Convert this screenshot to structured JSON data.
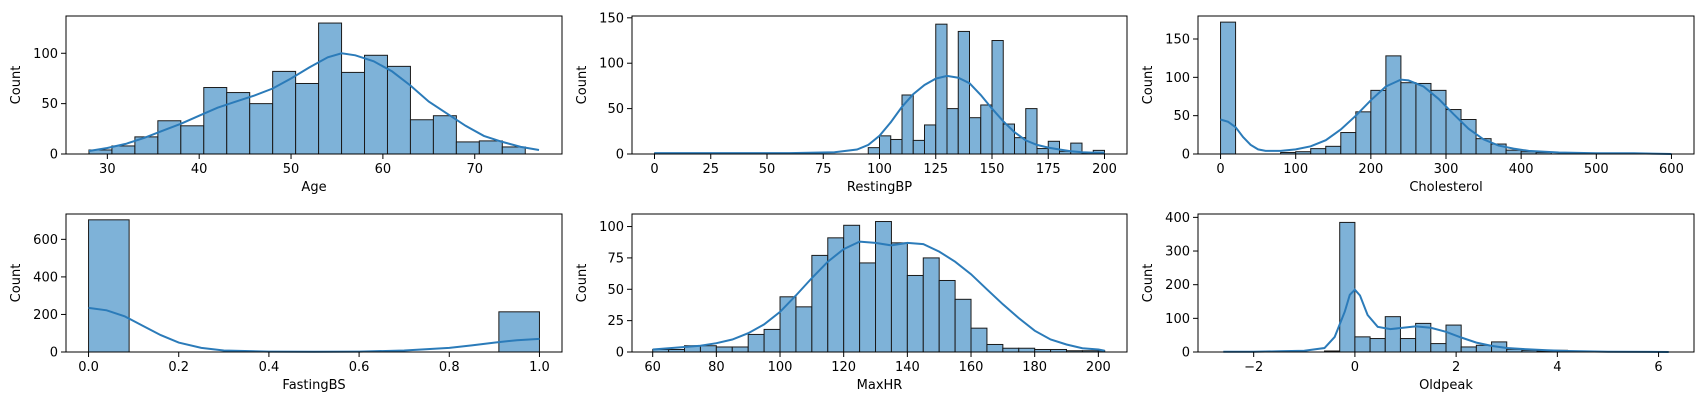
{
  "chart_data": [
    {
      "type": "histogram",
      "xlabel": "Age",
      "ylabel": "Count",
      "xlim": [
        25.5,
        79.5
      ],
      "ylim": [
        0,
        137
      ],
      "xticks": [
        30,
        40,
        50,
        60,
        70
      ],
      "yticks": [
        0,
        50,
        100
      ],
      "bins": [
        [
          28,
          30.5
        ],
        [
          30.5,
          33
        ],
        [
          33,
          35.5
        ],
        [
          35.5,
          38
        ],
        [
          38,
          40.5
        ],
        [
          40.5,
          43
        ],
        [
          43,
          45.5
        ],
        [
          45.5,
          48
        ],
        [
          48,
          50.5
        ],
        [
          50.5,
          53
        ],
        [
          53,
          55.5
        ],
        [
          55.5,
          58
        ],
        [
          58,
          60.5
        ],
        [
          60.5,
          63
        ],
        [
          63,
          65.5
        ],
        [
          65.5,
          68
        ],
        [
          68,
          70.5
        ],
        [
          70.5,
          73
        ],
        [
          73,
          75.5
        ],
        [
          75.5,
          77
        ]
      ],
      "counts": [
        4,
        8,
        17,
        33,
        28,
        66,
        61,
        50,
        82,
        70,
        130,
        81,
        98,
        87,
        34,
        38,
        12,
        13,
        7,
        0
      ],
      "kde": [
        [
          28,
          3
        ],
        [
          30,
          6
        ],
        [
          32,
          10
        ],
        [
          34,
          16
        ],
        [
          36,
          23
        ],
        [
          38,
          30
        ],
        [
          40,
          38
        ],
        [
          42,
          46
        ],
        [
          44,
          52
        ],
        [
          46,
          58
        ],
        [
          48,
          65
        ],
        [
          50,
          75
        ],
        [
          52,
          86
        ],
        [
          54,
          96
        ],
        [
          55.5,
          100
        ],
        [
          57,
          98
        ],
        [
          59,
          92
        ],
        [
          61,
          82
        ],
        [
          63,
          68
        ],
        [
          65,
          52
        ],
        [
          67,
          40
        ],
        [
          69,
          28
        ],
        [
          71,
          18
        ],
        [
          73,
          12
        ],
        [
          75,
          7
        ],
        [
          77,
          4
        ]
      ]
    },
    {
      "type": "histogram",
      "xlabel": "RestingBP",
      "ylabel": "Count",
      "xlim": [
        -10,
        210
      ],
      "ylim": [
        0,
        152
      ],
      "xticks": [
        0,
        25,
        50,
        75,
        100,
        125,
        150,
        175,
        200
      ],
      "yticks": [
        0,
        50,
        100,
        150
      ],
      "bins": [
        [
          0,
          5
        ],
        [
          95,
          100
        ],
        [
          100,
          105
        ],
        [
          105,
          110
        ],
        [
          110,
          115
        ],
        [
          115,
          120
        ],
        [
          120,
          125
        ],
        [
          125,
          130
        ],
        [
          130,
          135
        ],
        [
          135,
          140
        ],
        [
          140,
          145
        ],
        [
          145,
          150
        ],
        [
          150,
          155
        ],
        [
          155,
          160
        ],
        [
          160,
          165
        ],
        [
          165,
          170
        ],
        [
          170,
          175
        ],
        [
          175,
          180
        ],
        [
          180,
          185
        ],
        [
          185,
          190
        ],
        [
          190,
          195
        ],
        [
          195,
          200
        ]
      ],
      "counts": [
        1,
        7,
        20,
        16,
        65,
        15,
        32,
        143,
        50,
        135,
        40,
        54,
        125,
        33,
        18,
        50,
        6,
        14,
        3,
        12,
        1,
        4
      ],
      "kde": [
        [
          0,
          1
        ],
        [
          20,
          1
        ],
        [
          40,
          1
        ],
        [
          60,
          1
        ],
        [
          80,
          2
        ],
        [
          90,
          5
        ],
        [
          95,
          10
        ],
        [
          100,
          20
        ],
        [
          105,
          35
        ],
        [
          110,
          52
        ],
        [
          115,
          66
        ],
        [
          120,
          76
        ],
        [
          125,
          83
        ],
        [
          130,
          86
        ],
        [
          135,
          84
        ],
        [
          140,
          78
        ],
        [
          145,
          65
        ],
        [
          150,
          50
        ],
        [
          155,
          36
        ],
        [
          160,
          24
        ],
        [
          165,
          15
        ],
        [
          170,
          10
        ],
        [
          175,
          7
        ],
        [
          180,
          5
        ],
        [
          185,
          3
        ],
        [
          190,
          2
        ],
        [
          200,
          1
        ]
      ]
    },
    {
      "type": "histogram",
      "xlabel": "Cholesterol",
      "ylabel": "Count",
      "xlim": [
        -30,
        630
      ],
      "ylim": [
        0,
        180
      ],
      "xticks": [
        0,
        100,
        200,
        300,
        400,
        500,
        600
      ],
      "yticks": [
        0,
        50,
        100,
        150
      ],
      "bins": [
        [
          0,
          20
        ],
        [
          80,
          100
        ],
        [
          100,
          120
        ],
        [
          120,
          140
        ],
        [
          140,
          160
        ],
        [
          160,
          180
        ],
        [
          180,
          200
        ],
        [
          200,
          220
        ],
        [
          220,
          240
        ],
        [
          240,
          260
        ],
        [
          260,
          280
        ],
        [
          280,
          300
        ],
        [
          300,
          320
        ],
        [
          320,
          340
        ],
        [
          340,
          360
        ],
        [
          360,
          380
        ],
        [
          380,
          400
        ],
        [
          400,
          420
        ],
        [
          420,
          440
        ]
      ],
      "counts": [
        172,
        2,
        3,
        7,
        10,
        28,
        55,
        83,
        128,
        93,
        92,
        83,
        58,
        45,
        20,
        13,
        5,
        3,
        2
      ],
      "kde": [
        [
          0,
          45
        ],
        [
          10,
          42
        ],
        [
          20,
          35
        ],
        [
          30,
          22
        ],
        [
          40,
          12
        ],
        [
          50,
          6
        ],
        [
          60,
          4
        ],
        [
          80,
          4
        ],
        [
          100,
          6
        ],
        [
          120,
          10
        ],
        [
          140,
          18
        ],
        [
          160,
          32
        ],
        [
          180,
          50
        ],
        [
          200,
          70
        ],
        [
          220,
          88
        ],
        [
          240,
          97
        ],
        [
          250,
          96
        ],
        [
          270,
          88
        ],
        [
          290,
          72
        ],
        [
          310,
          52
        ],
        [
          330,
          33
        ],
        [
          350,
          19
        ],
        [
          370,
          11
        ],
        [
          390,
          7
        ],
        [
          410,
          4
        ],
        [
          450,
          2
        ],
        [
          500,
          1
        ],
        [
          550,
          1
        ],
        [
          600,
          0
        ]
      ]
    },
    {
      "type": "histogram",
      "xlabel": "FastingBS",
      "ylabel": "Count",
      "xlim": [
        -0.05,
        1.05
      ],
      "ylim": [
        0,
        735
      ],
      "xticks": [
        0.0,
        0.2,
        0.4,
        0.6,
        0.8,
        1.0
      ],
      "xtick_labels": [
        "0.0",
        "0.2",
        "0.4",
        "0.6",
        "0.8",
        "1.0"
      ],
      "yticks": [
        0,
        200,
        400,
        600
      ],
      "bins": [
        [
          0.0,
          0.09
        ],
        [
          0.91,
          1.0
        ]
      ],
      "counts": [
        704,
        214
      ],
      "kde": [
        [
          0,
          235
        ],
        [
          0.04,
          222
        ],
        [
          0.08,
          190
        ],
        [
          0.12,
          140
        ],
        [
          0.16,
          90
        ],
        [
          0.2,
          50
        ],
        [
          0.25,
          22
        ],
        [
          0.3,
          8
        ],
        [
          0.4,
          2
        ],
        [
          0.5,
          1
        ],
        [
          0.6,
          2
        ],
        [
          0.7,
          8
        ],
        [
          0.8,
          22
        ],
        [
          0.85,
          35
        ],
        [
          0.9,
          50
        ],
        [
          0.95,
          63
        ],
        [
          1.0,
          70
        ]
      ]
    },
    {
      "type": "histogram",
      "xlabel": "MaxHR",
      "ylabel": "Count",
      "xlim": [
        53.5,
        209
      ],
      "ylim": [
        0,
        110
      ],
      "xticks": [
        60,
        80,
        100,
        120,
        140,
        160,
        180,
        200
      ],
      "yticks": [
        0,
        25,
        50,
        75,
        100
      ],
      "bins": [
        [
          60,
          65
        ],
        [
          65,
          70
        ],
        [
          70,
          75
        ],
        [
          75,
          80
        ],
        [
          80,
          85
        ],
        [
          85,
          90
        ],
        [
          90,
          95
        ],
        [
          95,
          100
        ],
        [
          100,
          105
        ],
        [
          105,
          110
        ],
        [
          110,
          115
        ],
        [
          115,
          120
        ],
        [
          120,
          125
        ],
        [
          125,
          130
        ],
        [
          130,
          135
        ],
        [
          135,
          140
        ],
        [
          140,
          145
        ],
        [
          145,
          150
        ],
        [
          150,
          155
        ],
        [
          155,
          160
        ],
        [
          160,
          165
        ],
        [
          165,
          170
        ],
        [
          170,
          175
        ],
        [
          175,
          180
        ],
        [
          180,
          185
        ],
        [
          185,
          190
        ],
        [
          190,
          195
        ],
        [
          195,
          200
        ],
        [
          200,
          202
        ]
      ],
      "counts": [
        2,
        2,
        5,
        5,
        4,
        4,
        14,
        18,
        44,
        36,
        77,
        91,
        101,
        71,
        104,
        87,
        61,
        75,
        57,
        42,
        19,
        6,
        3,
        3,
        2,
        2,
        1,
        1,
        1
      ],
      "kde": [
        [
          60,
          2
        ],
        [
          65,
          3
        ],
        [
          70,
          4
        ],
        [
          75,
          5
        ],
        [
          80,
          7
        ],
        [
          85,
          10
        ],
        [
          90,
          15
        ],
        [
          95,
          22
        ],
        [
          100,
          32
        ],
        [
          105,
          45
        ],
        [
          110,
          59
        ],
        [
          115,
          72
        ],
        [
          120,
          82
        ],
        [
          125,
          88
        ],
        [
          130,
          87
        ],
        [
          135,
          85
        ],
        [
          140,
          87
        ],
        [
          145,
          86
        ],
        [
          150,
          80
        ],
        [
          155,
          72
        ],
        [
          160,
          62
        ],
        [
          165,
          50
        ],
        [
          170,
          38
        ],
        [
          175,
          27
        ],
        [
          180,
          17
        ],
        [
          185,
          10
        ],
        [
          190,
          6
        ],
        [
          195,
          3
        ],
        [
          200,
          2
        ],
        [
          202,
          1
        ]
      ]
    },
    {
      "type": "histogram",
      "xlabel": "Oldpeak",
      "ylabel": "Count",
      "xlim": [
        -3.1,
        6.7
      ],
      "ylim": [
        0,
        410
      ],
      "xticks": [
        -2,
        0,
        2,
        4,
        6
      ],
      "xtick_labels": [
        "−2",
        "0",
        "2",
        "4",
        "6"
      ],
      "yticks": [
        0,
        100,
        200,
        300,
        400
      ],
      "bins": [
        [
          -0.6,
          -0.3
        ],
        [
          -0.3,
          0
        ],
        [
          0,
          0.3
        ],
        [
          0.3,
          0.6
        ],
        [
          0.6,
          0.9
        ],
        [
          0.9,
          1.2
        ],
        [
          1.2,
          1.5
        ],
        [
          1.5,
          1.8
        ],
        [
          1.8,
          2.1
        ],
        [
          2.1,
          2.4
        ],
        [
          2.4,
          2.7
        ],
        [
          2.7,
          3.0
        ],
        [
          3.0,
          3.3
        ],
        [
          3.3,
          3.6
        ],
        [
          3.6,
          3.9
        ],
        [
          3.9,
          4.2
        ],
        [
          4.2,
          4.5
        ]
      ],
      "counts": [
        3,
        385,
        45,
        40,
        105,
        40,
        85,
        25,
        80,
        15,
        20,
        30,
        8,
        5,
        3,
        5,
        2
      ],
      "kde": [
        [
          -2.6,
          1
        ],
        [
          -2,
          1
        ],
        [
          -1.5,
          2
        ],
        [
          -1,
          4
        ],
        [
          -0.6,
          12
        ],
        [
          -0.4,
          45
        ],
        [
          -0.2,
          120
        ],
        [
          -0.1,
          170
        ],
        [
          0,
          185
        ],
        [
          0.1,
          168
        ],
        [
          0.25,
          110
        ],
        [
          0.45,
          75
        ],
        [
          0.7,
          68
        ],
        [
          0.95,
          72
        ],
        [
          1.2,
          76
        ],
        [
          1.5,
          72
        ],
        [
          1.8,
          60
        ],
        [
          2.1,
          43
        ],
        [
          2.4,
          28
        ],
        [
          2.7,
          18
        ],
        [
          3.0,
          12
        ],
        [
          3.4,
          8
        ],
        [
          3.8,
          5
        ],
        [
          4.2,
          3
        ],
        [
          5,
          1
        ],
        [
          6.2,
          0
        ]
      ]
    }
  ]
}
